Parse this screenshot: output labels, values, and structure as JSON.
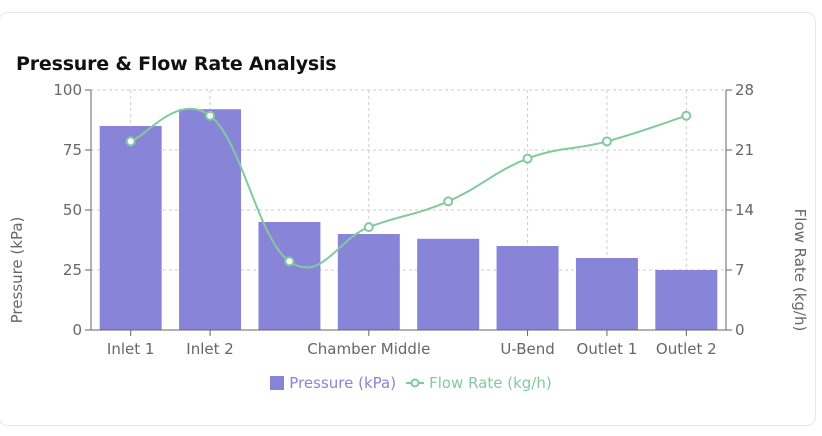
{
  "card": {
    "title": "Pressure & Flow Rate Analysis"
  },
  "chart_data": {
    "type": "bar+line",
    "title": "Pressure & Flow Rate Analysis",
    "categories": [
      "Inlet 1",
      "Inlet 2",
      "",
      "Chamber Middle",
      "",
      "U-Bend",
      "Outlet 1",
      "Outlet 2"
    ],
    "series": [
      {
        "name": "Pressure (kPa)",
        "type": "bar",
        "axis": "left",
        "color": "#8884d8",
        "values": [
          85,
          92,
          45,
          40,
          38,
          35,
          30,
          25
        ]
      },
      {
        "name": "Flow Rate (kg/h)",
        "type": "line",
        "axis": "right",
        "color": "#82ca9d",
        "values": [
          22,
          25,
          8,
          12,
          15,
          20,
          22,
          25
        ]
      }
    ],
    "ylabel": "Pressure (kPa)",
    "y2label": "Flow Rate (kg/h)",
    "ylim": [
      0,
      100
    ],
    "y2lim": [
      0,
      28
    ],
    "yticks": [
      "0",
      "25",
      "50",
      "75",
      "100"
    ],
    "y2ticks": [
      "0",
      "7",
      "14",
      "21",
      "28"
    ],
    "grid": true,
    "legend": "bottom-center"
  }
}
